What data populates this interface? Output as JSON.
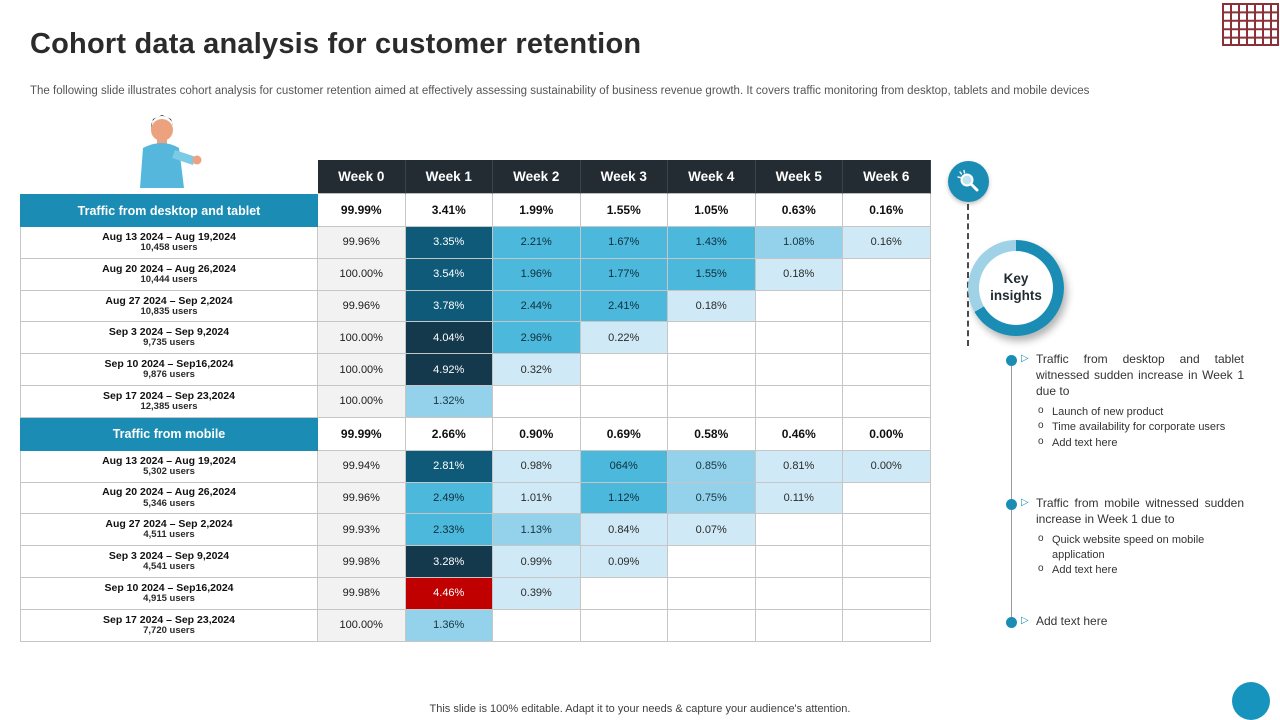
{
  "slide": {
    "title": "Cohort data analysis for customer retention",
    "subtitle": "The following slide illustrates cohort analysis for customer retention aimed at effectively  assessing sustainability of business revenue growth. It covers traffic monitoring from desktop, tablets and mobile devices",
    "footer": "This slide is 100% editable. Adapt it to your needs & capture your audience's attention."
  },
  "colors": {
    "teal_accent": "#1b8cb3",
    "header_dark": "#232c33",
    "highlight_red": "#c00000",
    "cell_light_blue": "#cfeaf6",
    "cell_medium_blue": "#4cb8dc",
    "cell_dark_teal": "#0e5a78",
    "cell_navy": "#14384c",
    "grid_icon_maroon": "#8a3138"
  },
  "table": {
    "week_headers": [
      "Week 0",
      "Week 1",
      "Week 2",
      "Week 3",
      "Week 4",
      "Week 5",
      "Week 6"
    ],
    "sections": [
      {
        "label": "Traffic from desktop and tablet",
        "summary": [
          "99.99%",
          "3.41%",
          "1.99%",
          "1.55%",
          "1.05%",
          "0.63%",
          "0.16%"
        ],
        "rows": [
          {
            "range": "Aug 13 2024 – Aug 19,2024",
            "users": "10,458 users",
            "cells": [
              [
                "99.96%",
                "gray"
              ],
              [
                "3.35%",
                "dark"
              ],
              [
                "2.21%",
                "mid"
              ],
              [
                "1.67%",
                "mid"
              ],
              [
                "1.43%",
                "mid"
              ],
              [
                "1.08%",
                "mlight"
              ],
              [
                "0.16%",
                "light"
              ]
            ]
          },
          {
            "range": "Aug 20 2024 – Aug 26,2024",
            "users": "10,444 users",
            "cells": [
              [
                "100.00%",
                "gray"
              ],
              [
                "3.54%",
                "dark"
              ],
              [
                "1.96%",
                "mid"
              ],
              [
                "1.77%",
                "mid"
              ],
              [
                "1.55%",
                "mid"
              ],
              [
                "0.18%",
                "light"
              ],
              [
                "",
                "empty"
              ]
            ]
          },
          {
            "range": "Aug 27 2024 – Sep 2,2024",
            "users": "10,835 users",
            "cells": [
              [
                "99.96%",
                "gray"
              ],
              [
                "3.78%",
                "dark"
              ],
              [
                "2.44%",
                "mid"
              ],
              [
                "2.41%",
                "mid"
              ],
              [
                "0.18%",
                "light"
              ],
              [
                "",
                "empty"
              ],
              [
                "",
                "empty"
              ]
            ]
          },
          {
            "range": "Sep 3 2024 – Sep 9,2024",
            "users": "9,735 users",
            "cells": [
              [
                "100.00%",
                "gray"
              ],
              [
                "4.04%",
                "navy"
              ],
              [
                "2.96%",
                "mid"
              ],
              [
                "0.22%",
                "light"
              ],
              [
                "",
                "empty"
              ],
              [
                "",
                "empty"
              ],
              [
                "",
                "empty"
              ]
            ]
          },
          {
            "range": "Sep 10 2024 – Sep16,2024",
            "users": "9,876 users",
            "cells": [
              [
                "100.00%",
                "gray"
              ],
              [
                "4.92%",
                "navy"
              ],
              [
                "0.32%",
                "light"
              ],
              [
                "",
                "empty"
              ],
              [
                "",
                "empty"
              ],
              [
                "",
                "empty"
              ],
              [
                "",
                "empty"
              ]
            ]
          },
          {
            "range": "Sep 17 2024 – Sep 23,2024",
            "users": "12,385 users",
            "cells": [
              [
                "100.00%",
                "gray"
              ],
              [
                "1.32%",
                "mlight"
              ],
              [
                "",
                "empty"
              ],
              [
                "",
                "empty"
              ],
              [
                "",
                "empty"
              ],
              [
                "",
                "empty"
              ],
              [
                "",
                "empty"
              ]
            ]
          }
        ]
      },
      {
        "label": "Traffic from mobile",
        "summary": [
          "99.99%",
          "2.66%",
          "0.90%",
          "0.69%",
          "0.58%",
          "0.46%",
          "0.00%"
        ],
        "rows": [
          {
            "range": "Aug 13 2024 – Aug 19,2024",
            "users": "5,302 users",
            "cells": [
              [
                "99.94%",
                "gray"
              ],
              [
                "2.81%",
                "dark"
              ],
              [
                "0.98%",
                "light"
              ],
              [
                "064%",
                "mid"
              ],
              [
                "0.85%",
                "mlight"
              ],
              [
                "0.81%",
                "light"
              ],
              [
                "0.00%",
                "light"
              ]
            ]
          },
          {
            "range": "Aug 20 2024 – Aug 26,2024",
            "users": "5,346 users",
            "cells": [
              [
                "99.96%",
                "gray"
              ],
              [
                "2.49%",
                "mid"
              ],
              [
                "1.01%",
                "light"
              ],
              [
                "1.12%",
                "mid"
              ],
              [
                "0.75%",
                "mlight"
              ],
              [
                "0.11%",
                "light"
              ],
              [
                "",
                "empty"
              ]
            ]
          },
          {
            "range": "Aug 27 2024 – Sep 2,2024",
            "users": "4,511 users",
            "cells": [
              [
                "99.93%",
                "gray"
              ],
              [
                "2.33%",
                "mid"
              ],
              [
                "1.13%",
                "mlight"
              ],
              [
                "0.84%",
                "light"
              ],
              [
                "0.07%",
                "light"
              ],
              [
                "",
                "empty"
              ],
              [
                "",
                "empty"
              ]
            ]
          },
          {
            "range": "Sep 3 2024 – Sep 9,2024",
            "users": "4,541 users",
            "cells": [
              [
                "99.98%",
                "gray"
              ],
              [
                "3.28%",
                "navy"
              ],
              [
                "0.99%",
                "light"
              ],
              [
                "0.09%",
                "light"
              ],
              [
                "",
                "empty"
              ],
              [
                "",
                "empty"
              ],
              [
                "",
                "empty"
              ]
            ]
          },
          {
            "range": "Sep 10 2024 – Sep16,2024",
            "users": "4,915 users",
            "cells": [
              [
                "99.98%",
                "gray"
              ],
              [
                "4.46%",
                "red"
              ],
              [
                "0.39%",
                "light"
              ],
              [
                "",
                "empty"
              ],
              [
                "",
                "empty"
              ],
              [
                "",
                "empty"
              ],
              [
                "",
                "empty"
              ]
            ]
          },
          {
            "range": "Sep 17 2024 – Sep 23,2024",
            "users": "7,720 users",
            "cells": [
              [
                "100.00%",
                "gray"
              ],
              [
                "1.36%",
                "mlight"
              ],
              [
                "",
                "empty"
              ],
              [
                "",
                "empty"
              ],
              [
                "",
                "empty"
              ],
              [
                "",
                "empty"
              ],
              [
                "",
                "empty"
              ]
            ]
          }
        ]
      }
    ]
  },
  "insights": {
    "badge": "Key insights",
    "items": [
      {
        "text": "Traffic  from desktop and tablet witnessed sudden increase in Week 1 due to",
        "subs": [
          "Launch of new product",
          "Time availability for corporate users",
          "Add text here"
        ]
      },
      {
        "text": "Traffic  from mobile witnessed sudden increase in Week 1 due to",
        "subs": [
          "Quick website speed on mobile application",
          "Add text here"
        ]
      },
      {
        "text": "Add text here",
        "subs": []
      }
    ]
  }
}
